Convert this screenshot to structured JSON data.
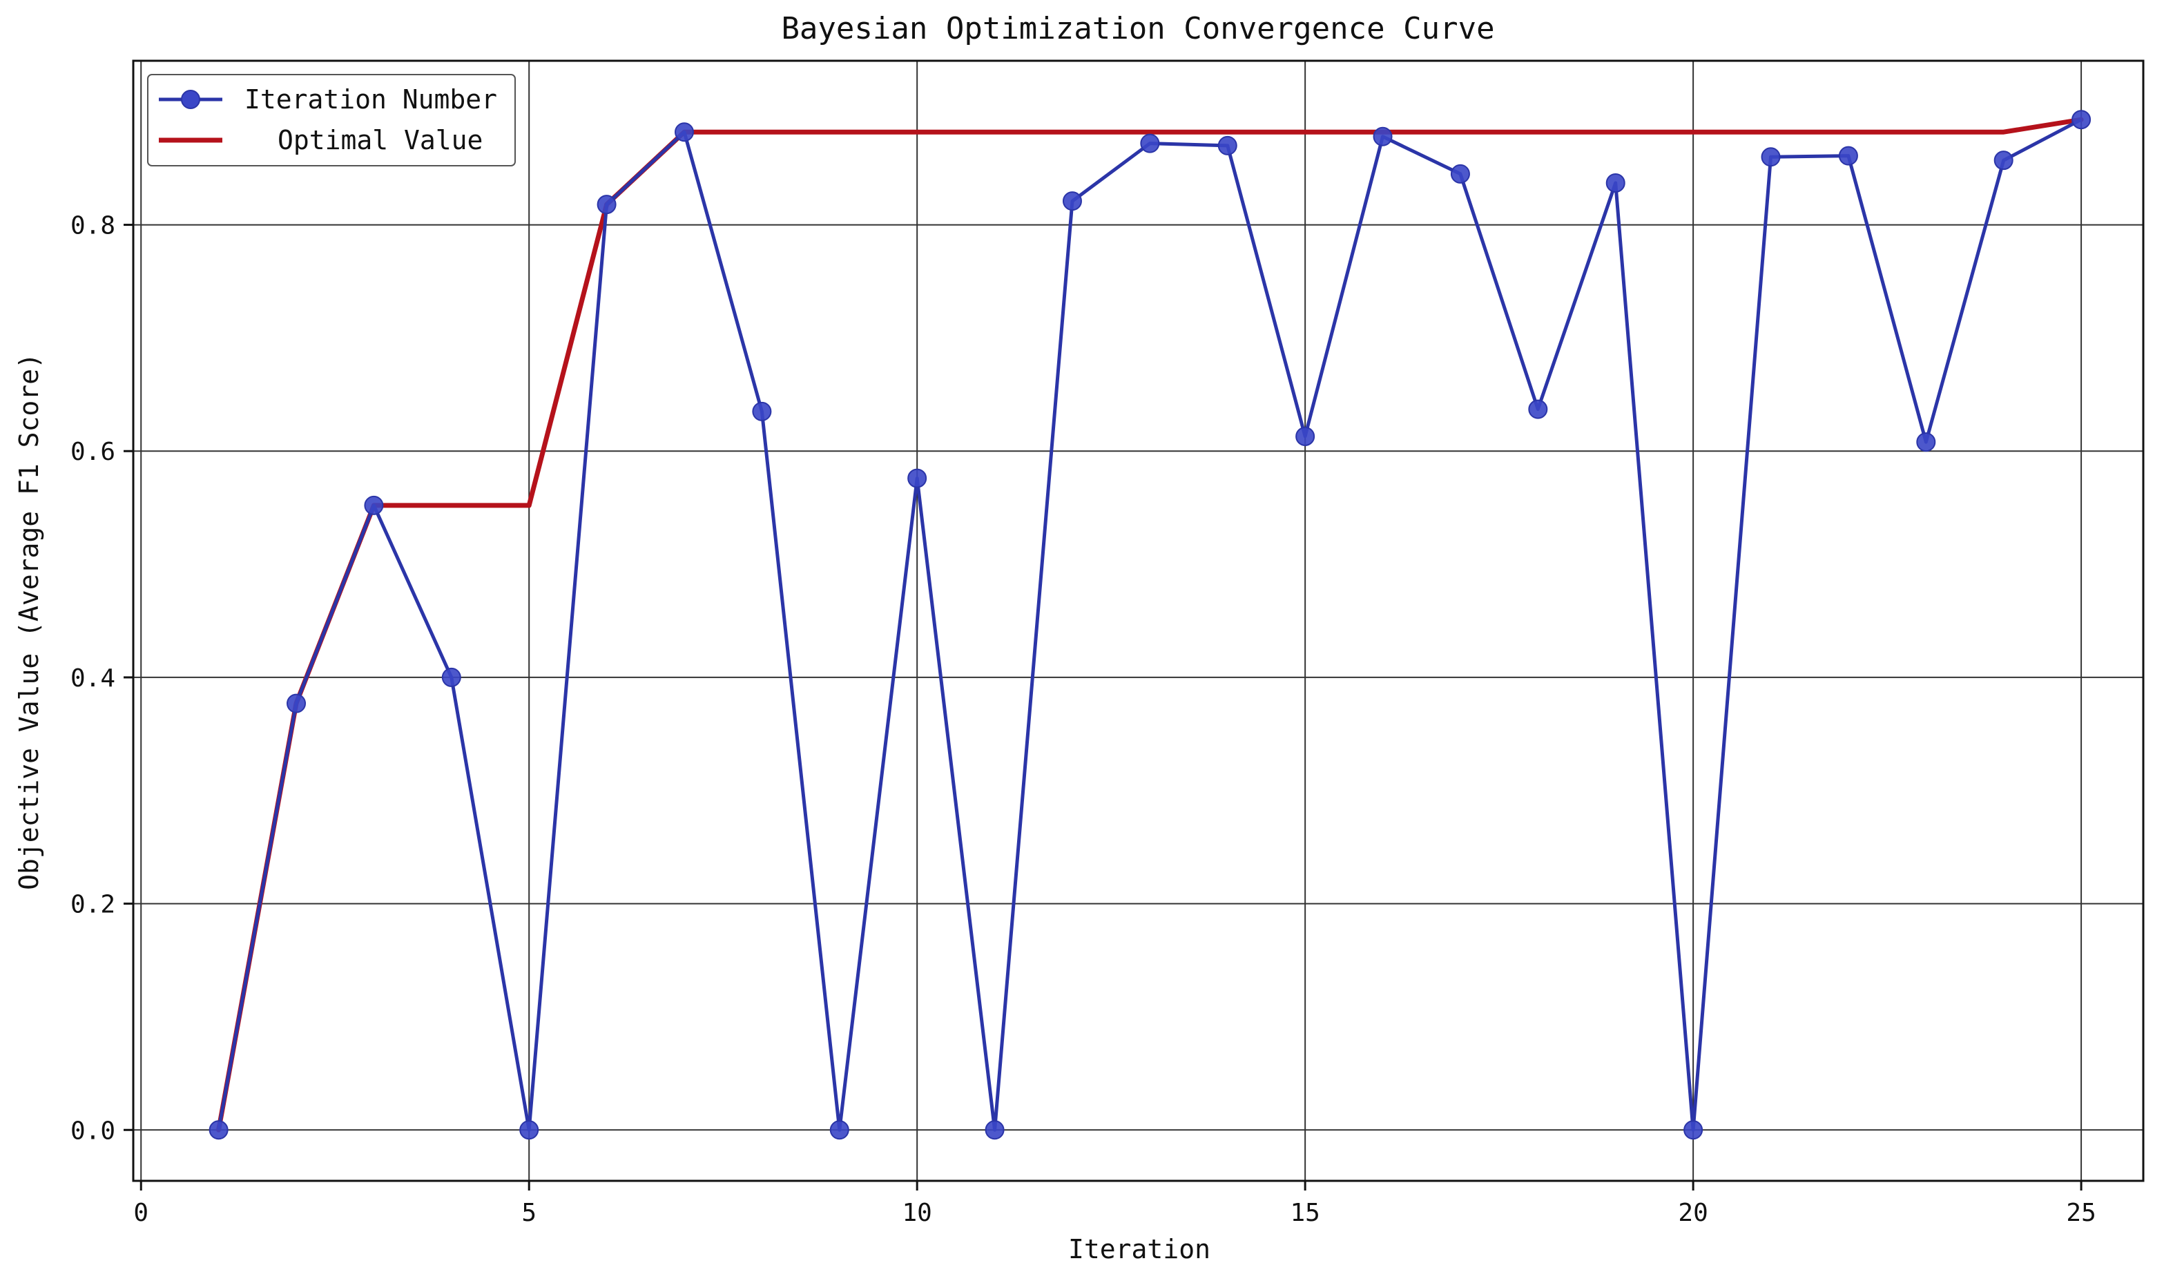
{
  "chart_data": {
    "type": "line",
    "title": "Bayesian Optimization Convergence Curve",
    "xlabel": "Iteration",
    "ylabel": "Objective Value (Average F1 Score)",
    "xlim": [
      -0.1,
      25.8
    ],
    "ylim": [
      -0.045,
      0.945
    ],
    "x_ticks": [
      0,
      5,
      10,
      15,
      20,
      25
    ],
    "y_ticks": [
      0.0,
      0.2,
      0.4,
      0.6,
      0.8
    ],
    "x_tick_labels": [
      "0",
      "5",
      "10",
      "15",
      "20",
      "25"
    ],
    "y_tick_labels": [
      "0.0",
      "0.2",
      "0.4",
      "0.6",
      "0.8"
    ],
    "grid": true,
    "legend_position": "top-left",
    "x": [
      1,
      2,
      3,
      4,
      5,
      6,
      7,
      8,
      9,
      10,
      11,
      12,
      13,
      14,
      15,
      16,
      17,
      18,
      19,
      20,
      21,
      22,
      23,
      24,
      25
    ],
    "series": [
      {
        "name": "Iteration Number",
        "color": "#2b35a8",
        "marker": "circle",
        "values": [
          0.0,
          0.377,
          0.552,
          0.4,
          0.0,
          0.818,
          0.882,
          0.635,
          0.0,
          0.576,
          0.0,
          0.821,
          0.872,
          0.87,
          0.613,
          0.878,
          0.845,
          0.637,
          0.837,
          0.0,
          0.86,
          0.861,
          0.608,
          0.857,
          0.893
        ]
      },
      {
        "name": "Optimal Value",
        "color": "#b5121b",
        "marker": "none",
        "values": [
          0.0,
          0.377,
          0.552,
          0.552,
          0.552,
          0.818,
          0.882,
          0.882,
          0.882,
          0.882,
          0.882,
          0.882,
          0.882,
          0.882,
          0.882,
          0.882,
          0.882,
          0.882,
          0.882,
          0.882,
          0.882,
          0.882,
          0.882,
          0.882,
          0.893
        ]
      }
    ]
  }
}
